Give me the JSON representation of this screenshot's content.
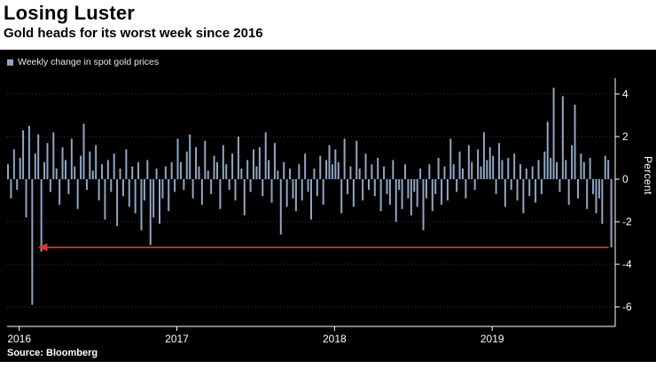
{
  "meta": {
    "title": "Losing Luster",
    "subtitle": "Gold heads for its worst week since 2016",
    "source": "Source: Bloomberg"
  },
  "legend": {
    "label": "Weekly change in spot gold prices"
  },
  "colors": {
    "background": "#000000",
    "header_background": "#ffffff",
    "bar": "#8fa6c4",
    "arrow": "#e0352b",
    "grid": "#3d3d3d",
    "axis": "#ffffff",
    "text": "#ffffff"
  },
  "chart_data": {
    "type": "bar",
    "title": "Losing Luster",
    "subtitle": "Gold heads for its worst week since 2016",
    "ylabel": "Percent",
    "ylim": [
      -7,
      5
    ],
    "grid": "horizontal-dotted",
    "legend_position": "top-left",
    "legend": [
      "Weekly change in spot gold prices"
    ],
    "y_ticks": [
      4,
      2,
      0,
      -2,
      -4,
      -6
    ],
    "x_unit": "weeks",
    "year_ticks": [
      {
        "label": "2016",
        "index": 4
      },
      {
        "label": "2017",
        "index": 56
      },
      {
        "label": "2018",
        "index": 108
      },
      {
        "label": "2019",
        "index": 160
      }
    ],
    "annotation": {
      "type": "arrow-left",
      "description": "Red arrow from latest weekly drop back to comparable drop in early 2016",
      "value": -3.2,
      "from_index": 199,
      "to_index": 6
    },
    "values": [
      0.7,
      -0.9,
      1.4,
      -0.5,
      1.0,
      2.3,
      -1.8,
      2.5,
      -5.9,
      1.2,
      2.1,
      -3.4,
      0.8,
      1.7,
      -0.6,
      2.2,
      0.5,
      -1.2,
      1.5,
      0.9,
      -0.7,
      1.9,
      0.6,
      -1.4,
      1.1,
      2.6,
      -0.5,
      1.3,
      0.4,
      1.6,
      -1.0,
      0.7,
      -1.9,
      0.9,
      -0.6,
      1.2,
      -2.2,
      0.5,
      -0.8,
      1.4,
      -1.3,
      0.6,
      -1.6,
      0.8,
      -2.4,
      -1.0,
      0.9,
      -3.1,
      -1.8,
      0.5,
      -2.1,
      -0.9,
      0.6,
      -1.5,
      0.8,
      -0.6,
      1.9,
      0.8,
      -0.5,
      1.3,
      2.1,
      -0.9,
      1.5,
      0.6,
      -1.2,
      1.8,
      0.4,
      -0.7,
      1.1,
      0.8,
      -1.4,
      1.6,
      0.7,
      -0.5,
      1.2,
      -1.0,
      2.0,
      0.5,
      -1.7,
      0.9,
      -0.6,
      1.4,
      0.6,
      1.5,
      -0.8,
      2.2,
      0.9,
      -1.1,
      1.7,
      0.4,
      -2.6,
      0.8,
      -1.3,
      0.5,
      -0.9,
      -1.5,
      0.7,
      -1.0,
      1.2,
      -0.6,
      -1.9,
      0.5,
      -0.8,
      1.1,
      -1.2,
      0.9,
      1.6,
      0.7,
      1.4,
      0.8,
      -1.6,
      1.9,
      -0.7,
      0.6,
      -1.3,
      1.8,
      0.5,
      -1.0,
      1.2,
      -0.5,
      0.7,
      -0.8,
      1.0,
      -1.5,
      0.6,
      -0.7,
      -1.2,
      0.9,
      -2.0,
      -0.5,
      -1.4,
      0.7,
      -0.9,
      -1.7,
      -0.6,
      -1.3,
      0.5,
      -2.4,
      -0.9,
      0.7,
      -1.5,
      -0.7,
      1.0,
      -1.2,
      0.6,
      -1.0,
      1.9,
      0.7,
      -0.6,
      1.3,
      0.5,
      -0.9,
      1.6,
      0.8,
      -0.5,
      1.4,
      0.6,
      2.2,
      0.9,
      1.5,
      1.1,
      -0.7,
      1.7,
      0.9,
      -1.3,
      1.0,
      -0.5,
      1.2,
      -1.0,
      0.7,
      -1.6,
      0.5,
      -0.8,
      0.6,
      -1.1,
      0.9,
      -0.7,
      1.3,
      2.7,
      1.0,
      4.3,
      0.8,
      -0.6,
      3.9,
      0.9,
      -1.2,
      1.6,
      3.5,
      -0.9,
      1.2,
      0.8,
      -1.4,
      1.0,
      -0.7,
      -1.6,
      -0.9,
      -2.1,
      1.1,
      0.9,
      -3.2
    ]
  },
  "axes": {
    "percent_label": "Percent"
  }
}
